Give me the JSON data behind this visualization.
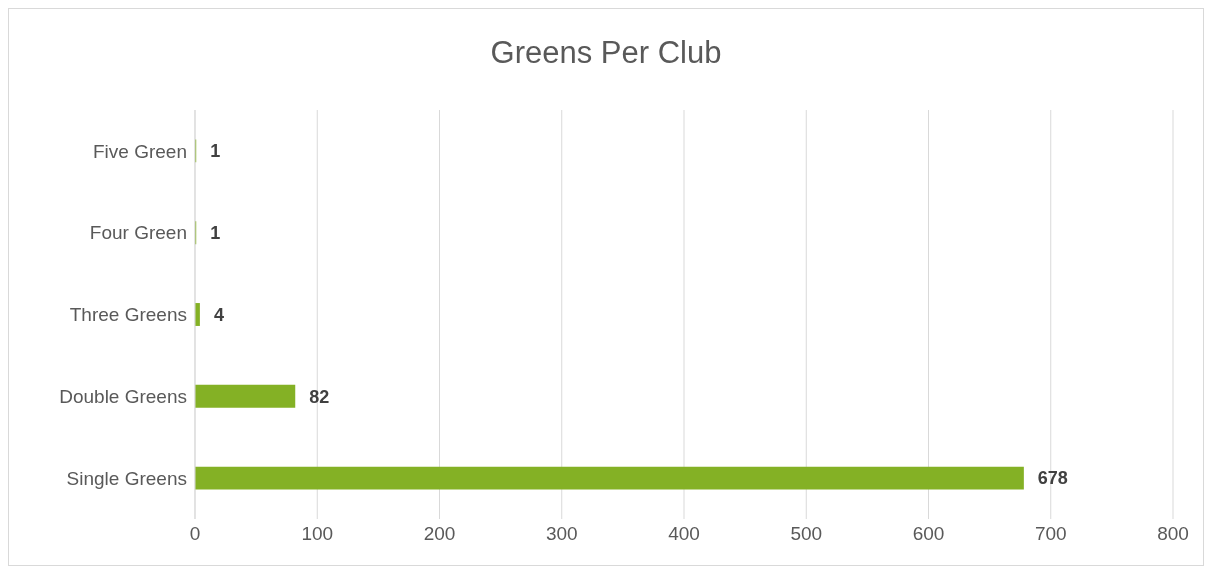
{
  "chart_data": {
    "type": "bar",
    "orientation": "horizontal",
    "title": "Greens Per Club",
    "categories": [
      "Five Green",
      "Four Green",
      "Three Greens",
      "Double Greens",
      "Single Greens"
    ],
    "values": [
      1,
      1,
      4,
      82,
      678
    ],
    "color": "#84b125",
    "xlim": [
      0,
      800
    ],
    "xticks": [
      0,
      100,
      200,
      300,
      400,
      500,
      600,
      700,
      800
    ],
    "grid": "x",
    "data_labels": true
  }
}
